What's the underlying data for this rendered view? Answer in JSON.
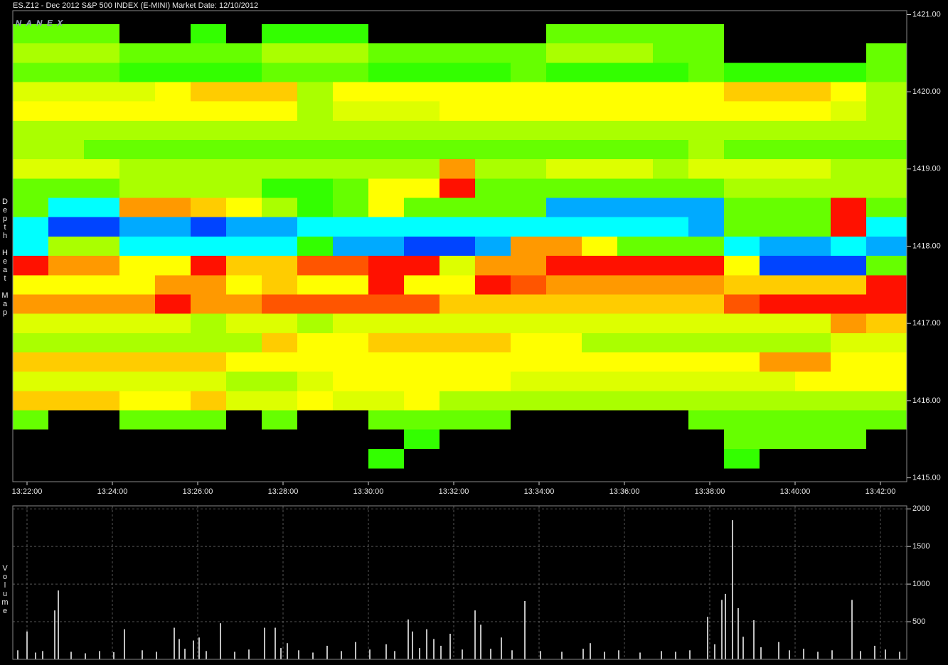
{
  "chart_data": [
    {
      "type": "heatmap",
      "title": "ES.Z12 - Dec 2012 S&P 500 INDEX (E-MINI)",
      "subtitle": "Market Date: 12/10/2012",
      "annotation": "NANEX",
      "ylabel": "Depth Heat Map",
      "colors": [
        "#000000",
        "#33ff00",
        "#66ff00",
        "#aaff00",
        "#ddff00",
        "#ffff00",
        "#ffcc00",
        "#ff9900",
        "#ff5500",
        "#ff1100",
        "#00ffff",
        "#00aaff",
        "#0044ff"
      ],
      "xlim": [
        48100,
        49357
      ],
      "ylim": [
        1414.95,
        1421.05
      ],
      "xticks": [
        {
          "value": 48120,
          "label": "13:22:00"
        },
        {
          "value": 48240,
          "label": "13:24:00"
        },
        {
          "value": 48360,
          "label": "13:26:00"
        },
        {
          "value": 48480,
          "label": "13:28:00"
        },
        {
          "value": 48600,
          "label": "13:30:00"
        },
        {
          "value": 48720,
          "label": "13:32:00"
        },
        {
          "value": 48840,
          "label": "13:34:00"
        },
        {
          "value": 48960,
          "label": "13:36:00"
        },
        {
          "value": 49080,
          "label": "13:38:00"
        },
        {
          "value": 49200,
          "label": "13:40:00"
        },
        {
          "value": 49320,
          "label": "13:42:00"
        }
      ],
      "yticks": [
        {
          "value": 1415,
          "label": "1415.00"
        },
        {
          "value": 1416,
          "label": "1416.00"
        },
        {
          "value": 1417,
          "label": "1417.00"
        },
        {
          "value": 1418,
          "label": "1418.00"
        },
        {
          "value": 1419,
          "label": "1419.00"
        },
        {
          "value": 1420,
          "label": "1420.00"
        },
        {
          "value": 1421,
          "label": "1421.00"
        }
      ],
      "x_edges": [
        48100,
        48150,
        48200,
        48250,
        48300,
        48350,
        48400,
        48450,
        48500,
        48550,
        48600,
        48650,
        48700,
        48750,
        48800,
        48850,
        48900,
        48950,
        49000,
        49050,
        49100,
        49150,
        49200,
        49250,
        49300,
        49357
      ],
      "prices": [
        1420.75,
        1420.5,
        1420.25,
        1420,
        1419.75,
        1419.5,
        1419.25,
        1419,
        1418.75,
        1418.5,
        1418.25,
        1418,
        1417.75,
        1417.5,
        1417.25,
        1417,
        1416.75,
        1416.5,
        1416.25,
        1416,
        1415.75,
        1415.5,
        1415.25
      ],
      "values": [
        [
          2,
          2,
          2,
          0,
          0,
          1,
          0,
          1,
          1,
          1,
          0,
          0,
          0,
          0,
          0,
          2,
          2,
          2,
          2,
          2,
          0,
          0,
          0,
          0,
          0
        ],
        [
          3,
          3,
          3,
          2,
          2,
          2,
          2,
          3,
          3,
          3,
          2,
          2,
          2,
          2,
          2,
          3,
          3,
          3,
          2,
          2,
          0,
          0,
          0,
          0,
          2
        ],
        [
          2,
          2,
          2,
          1,
          1,
          1,
          1,
          2,
          2,
          2,
          1,
          1,
          1,
          1,
          2,
          1,
          1,
          1,
          1,
          2,
          1,
          1,
          1,
          1,
          2
        ],
        [
          4,
          4,
          4,
          4,
          5,
          6,
          6,
          6,
          3,
          5,
          5,
          5,
          5,
          5,
          5,
          5,
          5,
          5,
          5,
          5,
          6,
          6,
          6,
          5,
          3
        ],
        [
          5,
          5,
          5,
          5,
          5,
          5,
          5,
          5,
          3,
          4,
          4,
          4,
          5,
          5,
          5,
          5,
          5,
          5,
          5,
          5,
          5,
          5,
          5,
          4,
          3
        ],
        [
          3,
          3,
          3,
          3,
          3,
          3,
          3,
          3,
          3,
          3,
          3,
          3,
          3,
          3,
          3,
          3,
          3,
          3,
          3,
          3,
          3,
          3,
          3,
          3,
          3
        ],
        [
          3,
          3,
          2,
          2,
          2,
          2,
          2,
          2,
          2,
          2,
          2,
          2,
          2,
          2,
          2,
          2,
          2,
          2,
          2,
          3,
          2,
          2,
          2,
          2,
          2
        ],
        [
          4,
          4,
          4,
          3,
          3,
          3,
          3,
          3,
          3,
          3,
          3,
          3,
          7,
          3,
          3,
          4,
          4,
          4,
          3,
          4,
          4,
          4,
          4,
          3,
          3
        ],
        [
          2,
          2,
          2,
          3,
          3,
          3,
          3,
          1,
          1,
          2,
          5,
          5,
          9,
          2,
          2,
          2,
          2,
          2,
          2,
          2,
          3,
          3,
          3,
          3,
          3
        ],
        [
          2,
          10,
          10,
          7,
          7,
          6,
          5,
          3,
          1,
          2,
          5,
          2,
          2,
          2,
          2,
          11,
          11,
          11,
          11,
          11,
          2,
          2,
          2,
          9,
          2
        ],
        [
          10,
          12,
          12,
          11,
          11,
          12,
          11,
          11,
          10,
          10,
          10,
          10,
          10,
          10,
          10,
          10,
          10,
          10,
          10,
          11,
          2,
          2,
          2,
          9,
          10
        ],
        [
          10,
          3,
          3,
          10,
          10,
          10,
          10,
          10,
          1,
          11,
          11,
          12,
          12,
          11,
          7,
          7,
          5,
          2,
          2,
          2,
          10,
          11,
          11,
          10,
          11
        ],
        [
          9,
          7,
          7,
          5,
          5,
          9,
          6,
          6,
          8,
          8,
          9,
          9,
          4,
          7,
          7,
          9,
          9,
          9,
          9,
          9,
          5,
          12,
          12,
          12,
          2
        ],
        [
          5,
          5,
          5,
          5,
          7,
          7,
          5,
          6,
          5,
          5,
          9,
          5,
          5,
          9,
          8,
          7,
          7,
          7,
          7,
          7,
          6,
          6,
          6,
          6,
          9
        ],
        [
          7,
          7,
          7,
          7,
          9,
          7,
          7,
          8,
          8,
          8,
          8,
          8,
          6,
          6,
          6,
          6,
          6,
          6,
          6,
          6,
          8,
          9,
          9,
          9,
          9
        ],
        [
          4,
          4,
          4,
          4,
          4,
          3,
          4,
          4,
          3,
          4,
          4,
          4,
          4,
          4,
          4,
          4,
          4,
          4,
          4,
          4,
          4,
          4,
          4,
          7,
          6
        ],
        [
          3,
          3,
          3,
          3,
          3,
          3,
          3,
          6,
          5,
          5,
          6,
          6,
          6,
          6,
          5,
          5,
          3,
          3,
          3,
          3,
          3,
          3,
          3,
          4,
          4
        ],
        [
          6,
          6,
          6,
          6,
          6,
          6,
          5,
          5,
          5,
          5,
          5,
          5,
          5,
          5,
          5,
          5,
          5,
          5,
          5,
          5,
          5,
          7,
          7,
          5,
          5
        ],
        [
          4,
          4,
          4,
          4,
          4,
          4,
          3,
          3,
          4,
          5,
          5,
          5,
          5,
          5,
          4,
          4,
          4,
          4,
          4,
          4,
          4,
          4,
          5,
          5,
          5
        ],
        [
          6,
          6,
          6,
          5,
          5,
          6,
          4,
          4,
          5,
          4,
          4,
          5,
          3,
          3,
          3,
          3,
          3,
          3,
          3,
          3,
          3,
          3,
          3,
          3,
          3
        ],
        [
          2,
          0,
          0,
          2,
          2,
          2,
          0,
          2,
          0,
          0,
          2,
          2,
          2,
          2,
          0,
          0,
          0,
          0,
          0,
          2,
          2,
          2,
          2,
          2,
          2
        ],
        [
          0,
          0,
          0,
          0,
          0,
          0,
          0,
          0,
          0,
          0,
          0,
          1,
          0,
          0,
          0,
          0,
          0,
          0,
          0,
          0,
          2,
          2,
          2,
          2,
          0
        ],
        [
          0,
          0,
          0,
          0,
          0,
          0,
          0,
          0,
          0,
          0,
          1,
          0,
          0,
          0,
          0,
          0,
          0,
          0,
          0,
          0,
          1,
          0,
          0,
          0,
          0
        ]
      ]
    },
    {
      "type": "bar",
      "ylabel": "Volume",
      "color": "#ffffff",
      "grid": true,
      "xlim": [
        48100,
        49357
      ],
      "ylim": [
        0,
        2040
      ],
      "xticks": [
        48120,
        48240,
        48360,
        48480,
        48600,
        48720,
        48840,
        48960,
        49080,
        49200,
        49320
      ],
      "yticks": [
        500,
        1000,
        1500,
        2000
      ],
      "x": [
        48107,
        48120,
        48132,
        48142,
        48159,
        48164,
        48182,
        48202,
        48222,
        48242,
        48257,
        48282,
        48302,
        48327,
        48334,
        48342,
        48354,
        48362,
        48372,
        48392,
        48412,
        48432,
        48454,
        48469,
        48477,
        48486,
        48502,
        48522,
        48542,
        48562,
        48582,
        48602,
        48625,
        48637,
        48656,
        48662,
        48672,
        48682,
        48692,
        48702,
        48715,
        48732,
        48750,
        48758,
        48772,
        48787,
        48802,
        48820,
        48842,
        48872,
        48902,
        48912,
        48932,
        48952,
        48982,
        49012,
        49032,
        49052,
        49077,
        49087,
        49097,
        49102,
        49112,
        49120,
        49127,
        49142,
        49152,
        49177,
        49192,
        49212,
        49232,
        49252,
        49280,
        49292,
        49312,
        49327,
        49347
      ],
      "values": [
        120,
        370,
        90,
        110,
        650,
        915,
        100,
        80,
        110,
        95,
        400,
        120,
        100,
        420,
        270,
        140,
        250,
        290,
        110,
        480,
        100,
        130,
        420,
        420,
        150,
        215,
        120,
        90,
        180,
        110,
        230,
        130,
        200,
        110,
        530,
        370,
        150,
        400,
        270,
        180,
        340,
        130,
        650,
        460,
        140,
        290,
        120,
        775,
        110,
        100,
        140,
        215,
        100,
        120,
        90,
        110,
        100,
        120,
        565,
        200,
        790,
        870,
        1850,
        680,
        300,
        520,
        160,
        230,
        120,
        140,
        100,
        120,
        790,
        110,
        180,
        130,
        100
      ]
    }
  ]
}
